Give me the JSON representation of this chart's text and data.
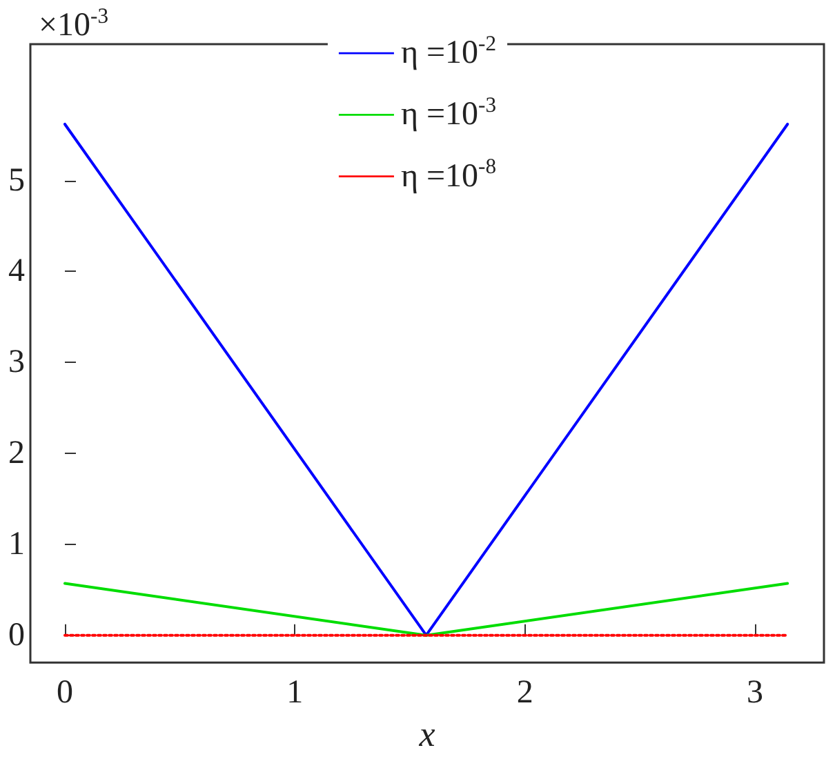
{
  "chart_data": {
    "type": "line",
    "xlabel": "x",
    "annotations": [
      "×10$^{-3}$"
    ],
    "xlim": [
      -0.15,
      3.3
    ],
    "xticks": [
      0,
      1,
      2,
      3
    ],
    "ylim": [
      -0.3,
      6.5
    ],
    "yticks": [
      0,
      1,
      2,
      3,
      4,
      5
    ],
    "grid": false,
    "legend": "top",
    "marker": "none",
    "series": [
      {
        "name": "η =10$^{-2}$",
        "color": "#0000ff",
        "line_style": "solid",
        "x": [
          0,
          1.5708,
          3.1416
        ],
        "values": [
          5.62,
          0,
          5.62
        ]
      },
      {
        "name": "η =10$^{-3}$",
        "color": "#00dd00",
        "line_style": "solid",
        "x": [
          0,
          1.5708,
          3.1416
        ],
        "values": [
          0.57,
          0,
          0.57
        ]
      },
      {
        "name": "η =10$^{-8}$",
        "color": "#ff0000",
        "line_style": "dotted",
        "x": [
          0,
          1.5708,
          3.1416
        ],
        "values": [
          0,
          0,
          0
        ]
      }
    ]
  }
}
